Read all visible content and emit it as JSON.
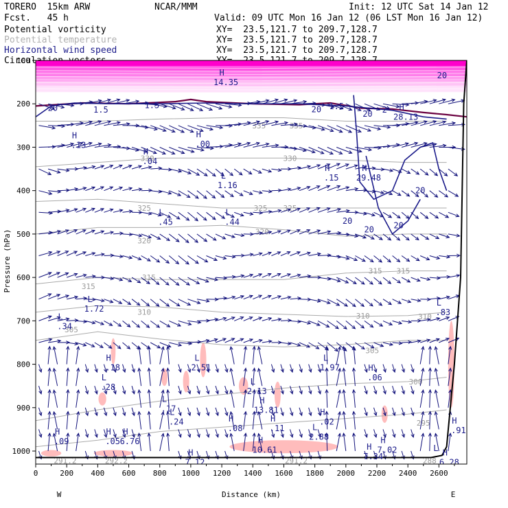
{
  "header": {
    "model": "TORERO  15km ARW",
    "org": "NCAR/MMM",
    "init": "Init: 12 UTC Sat 14 Jan 12",
    "fcst": "Fcst.   45 h",
    "valid": "Valid: 09 UTC Mon 16 Jan 12 (06 LST Mon 16 Jan 12)",
    "fields": [
      {
        "name": "Potential vorticity",
        "xy": "XY=  23.5,121.7 to 209.7,128.7"
      },
      {
        "name": "Potential temperature",
        "xy": "XY=  23.5,121.7 to 209.7,128.7"
      },
      {
        "name": "Horizontal wind speed",
        "xy": "XY=  23.5,121.7 to 209.7,128.7"
      },
      {
        "name": "Circulation vectors",
        "xy": "XY=  23.5,121.7 to 209.7,128.7"
      }
    ]
  },
  "colors": {
    "pv": "#ff00cc",
    "pv_light": "#ffb0f0",
    "pv_dark": "#6a0040",
    "theta": "#aaaaaa",
    "windspeed": "#1b1b8a",
    "vectors": "#10107a",
    "windshade": "#ffbcbc",
    "terrain": "#000000"
  },
  "chart_data": {
    "type": "cross-section",
    "title": "Potential vorticity / Potential temperature / Horizontal wind speed / Circulation vectors",
    "xlabel": "Distance (km)",
    "ylabel": "Pressure (hPa)",
    "xlim": [
      0,
      2780
    ],
    "ylim": [
      1030,
      100
    ],
    "x_ticks": [
      0,
      200,
      400,
      600,
      800,
      1000,
      1200,
      1400,
      1600,
      1800,
      2000,
      2200,
      2400,
      2600
    ],
    "y_ticks": [
      100,
      200,
      300,
      400,
      500,
      600,
      700,
      800,
      900,
      1000
    ],
    "x_end_labels": {
      "left": "W",
      "right": "E"
    },
    "theta_isotherms": [
      {
        "value": 295,
        "points": [
          [
            0,
            990
          ],
          [
            400,
            975
          ],
          [
            800,
            955
          ],
          [
            1200,
            945
          ],
          [
            1600,
            935
          ],
          [
            2000,
            925
          ],
          [
            2400,
            915
          ],
          [
            2650,
            905
          ]
        ],
        "labels": [
          [
            2500,
            935,
            "295"
          ]
        ]
      },
      {
        "value": 300,
        "points": [
          [
            0,
            930
          ],
          [
            400,
            905
          ],
          [
            800,
            885
          ],
          [
            1200,
            870
          ],
          [
            1600,
            855
          ],
          [
            2000,
            845
          ],
          [
            2400,
            840
          ],
          [
            2650,
            830
          ]
        ],
        "labels": [
          [
            2450,
            840,
            "300"
          ]
        ]
      },
      {
        "value": 305,
        "points": [
          [
            0,
            745
          ],
          [
            400,
            725
          ],
          [
            800,
            742
          ],
          [
            1200,
            755
          ],
          [
            1600,
            760
          ],
          [
            2000,
            755
          ],
          [
            2400,
            745
          ],
          [
            2650,
            745
          ]
        ],
        "labels": [
          [
            230,
            720,
            "305"
          ],
          [
            2170,
            768,
            "305"
          ]
        ]
      },
      {
        "value": 310,
        "points": [
          [
            0,
            680
          ],
          [
            400,
            665
          ],
          [
            800,
            668
          ],
          [
            1200,
            680
          ],
          [
            1600,
            685
          ],
          [
            2000,
            690
          ],
          [
            2400,
            688
          ],
          [
            2650,
            680
          ]
        ],
        "labels": [
          [
            700,
            680,
            "310"
          ],
          [
            2110,
            688,
            "310"
          ],
          [
            2510,
            690,
            "310"
          ]
        ]
      },
      {
        "value": 315,
        "points": [
          [
            0,
            615
          ],
          [
            400,
            600
          ],
          [
            800,
            605
          ],
          [
            1200,
            605
          ],
          [
            1600,
            605
          ],
          [
            2000,
            590
          ],
          [
            2400,
            585
          ],
          [
            2650,
            585
          ]
        ],
        "labels": [
          [
            340,
            620,
            "315"
          ],
          [
            730,
            600,
            "315"
          ],
          [
            2190,
            585,
            "315"
          ],
          [
            2370,
            585,
            "315"
          ]
        ]
      },
      {
        "value": 320,
        "points": [
          [
            0,
            500
          ],
          [
            400,
            485
          ],
          [
            800,
            485
          ],
          [
            1200,
            480
          ],
          [
            1600,
            490
          ],
          [
            2000,
            505
          ],
          [
            2400,
            500
          ],
          [
            2650,
            500
          ]
        ],
        "labels": [
          [
            700,
            515,
            "320"
          ],
          [
            1460,
            495,
            "320"
          ]
        ]
      },
      {
        "value": 325,
        "points": [
          [
            0,
            425
          ],
          [
            400,
            420
          ],
          [
            800,
            430
          ],
          [
            1200,
            440
          ],
          [
            1600,
            440
          ],
          [
            2000,
            440
          ],
          [
            2400,
            440
          ],
          [
            2650,
            440
          ]
        ],
        "labels": [
          [
            700,
            440,
            "325"
          ],
          [
            1450,
            440,
            "325"
          ],
          [
            1640,
            440,
            "325"
          ]
        ]
      },
      {
        "value": 330,
        "points": [
          [
            0,
            345
          ],
          [
            400,
            335
          ],
          [
            800,
            325
          ],
          [
            1200,
            325
          ],
          [
            1600,
            325
          ],
          [
            2000,
            330
          ],
          [
            2400,
            335
          ],
          [
            2650,
            335
          ]
        ],
        "labels": [
          [
            720,
            325,
            "330"
          ],
          [
            1640,
            325,
            "330"
          ]
        ]
      },
      {
        "value": 335,
        "points": [
          [
            0,
            240
          ],
          [
            400,
            240
          ],
          [
            800,
            235
          ],
          [
            1200,
            232
          ],
          [
            1600,
            232
          ],
          [
            2000,
            240
          ],
          [
            2400,
            240
          ],
          [
            2650,
            240
          ]
        ],
        "labels": [
          [
            1440,
            250,
            "335"
          ],
          [
            1680,
            250,
            "335"
          ]
        ]
      }
    ],
    "windspeed_contours": [
      {
        "value": 20,
        "points": [
          [
            0,
            230
          ],
          [
            100,
            205
          ],
          [
            250,
            198
          ],
          [
            500,
            200
          ],
          [
            800,
            200
          ],
          [
            1100,
            198
          ],
          [
            1400,
            200
          ],
          [
            1700,
            200
          ],
          [
            2000,
            205
          ],
          [
            2300,
            215
          ],
          [
            2500,
            230
          ],
          [
            2650,
            235
          ]
        ],
        "labels": [
          [
            110,
            210,
            "20"
          ],
          [
            2620,
            135,
            "20"
          ]
        ]
      },
      {
        "value": 20,
        "points": [
          [
            2050,
            180
          ],
          [
            2070,
            270
          ],
          [
            2090,
            380
          ],
          [
            2180,
            420
          ],
          [
            2300,
            400
          ],
          [
            2380,
            330
          ],
          [
            2480,
            300
          ],
          [
            2560,
            290
          ],
          [
            2600,
            350
          ],
          [
            2650,
            400
          ]
        ],
        "labels": [
          [
            2010,
            470,
            "20"
          ],
          [
            2480,
            400,
            "20"
          ]
        ]
      },
      {
        "value": 20,
        "points": [
          [
            2130,
            320
          ],
          [
            2210,
            440
          ],
          [
            2300,
            500
          ],
          [
            2400,
            470
          ],
          [
            2480,
            420
          ]
        ],
        "labels": [
          [
            2150,
            490,
            "20"
          ],
          [
            2340,
            480,
            "20"
          ]
        ]
      }
    ],
    "windspeed_contour_labels": [
      [
        1810,
        213,
        "20"
      ],
      [
        2140,
        223,
        "20"
      ]
    ],
    "pv_band": {
      "top": 100,
      "bottom": 200,
      "levels": [
        "1.5",
        "2",
        "3",
        "4",
        "5",
        "6"
      ],
      "labels": [
        [
          420,
          220,
          "1.5"
        ],
        [
          750,
          210,
          "1.5"
        ],
        [
          1940,
          212,
          "1.5"
        ],
        [
          2250,
          220,
          "2"
        ]
      ]
    },
    "wind_speed_shading": [
      {
        "center": [
          100,
          1005
        ],
        "w": 130,
        "h": 15
      },
      {
        "center": [
          500,
          1005
        ],
        "w": 250,
        "h": 15
      },
      {
        "center": [
          500,
          770
        ],
        "w": 30,
        "h": 60
      },
      {
        "center": [
          430,
          880
        ],
        "w": 50,
        "h": 30
      },
      {
        "center": [
          830,
          830
        ],
        "w": 40,
        "h": 40
      },
      {
        "center": [
          970,
          840
        ],
        "w": 40,
        "h": 50
      },
      {
        "center": [
          1080,
          790
        ],
        "w": 40,
        "h": 80
      },
      {
        "center": [
          1340,
          850
        ],
        "w": 60,
        "h": 40
      },
      {
        "center": [
          1560,
          870
        ],
        "w": 40,
        "h": 60
      },
      {
        "center": [
          2250,
          915
        ],
        "w": 40,
        "h": 40
      },
      {
        "center": [
          2680,
          800
        ],
        "w": 40,
        "h": 200
      },
      {
        "center": [
          1600,
          990
        ],
        "w": 700,
        "h": 30
      }
    ],
    "extrema_labels": [
      {
        "sym": "H",
        "val": "14.35",
        "x": 1200,
        "y": 138
      },
      {
        "sym": "H",
        "val": ".13",
        "x": 250,
        "y": 283
      },
      {
        "sym": "H",
        "val": ".04",
        "x": 710,
        "y": 320
      },
      {
        "sym": "H",
        "val": ".00",
        "x": 1050,
        "y": 280
      },
      {
        "sym": "L",
        "val": "1.16",
        "x": 1210,
        "y": 375
      },
      {
        "sym": "H",
        "val": ".15",
        "x": 1880,
        "y": 358
      },
      {
        "sym": "H",
        "val": "29.48",
        "x": 2120,
        "y": 358
      },
      {
        "sym": "H",
        "val": "28.13",
        "x": 2360,
        "y": 218
      },
      {
        "sym": "L",
        "val": ".45",
        "x": 810,
        "y": 460
      },
      {
        "sym": "L",
        "val": ".44",
        "x": 1240,
        "y": 460
      },
      {
        "sym": "L",
        "val": "1.72",
        "x": 350,
        "y": 660
      },
      {
        "sym": "L",
        "val": ".34",
        "x": 160,
        "y": 700
      },
      {
        "sym": "L",
        "val": ".83",
        "x": 2600,
        "y": 668
      },
      {
        "sym": "H",
        "val": ".18",
        "x": 470,
        "y": 795
      },
      {
        "sym": "L",
        "val": "2.51",
        "x": 1040,
        "y": 795
      },
      {
        "sym": "L",
        "val": "1.97",
        "x": 1870,
        "y": 795
      },
      {
        "sym": "H",
        "val": ".06",
        "x": 2160,
        "y": 818
      },
      {
        "sym": "L",
        "val": ".28",
        "x": 440,
        "y": 840
      },
      {
        "sym": "L",
        "val": "2.13",
        "x": 1400,
        "y": 850
      },
      {
        "sym": "L",
        "val": ".17",
        "x": 830,
        "y": 890
      },
      {
        "sym": "L",
        "val": ".24",
        "x": 880,
        "y": 920
      },
      {
        "sym": "H",
        "val": "13.81",
        "x": 1460,
        "y": 893
      },
      {
        "sym": "H",
        "val": ".02",
        "x": 1850,
        "y": 920
      },
      {
        "sym": "H",
        "val": ".08",
        "x": 1260,
        "y": 935
      },
      {
        "sym": "H",
        "val": ".11",
        "x": 1530,
        "y": 935
      },
      {
        "sym": "L",
        "val": "2.88",
        "x": 1800,
        "y": 955
      },
      {
        "sym": "H",
        "val": ".09",
        "x": 140,
        "y": 965
      },
      {
        "sym": "H",
        "val": ".05",
        "x": 470,
        "y": 965
      },
      {
        "sym": "H",
        "val": "6.76",
        "x": 580,
        "y": 965
      },
      {
        "sym": "H",
        "val": "10.61",
        "x": 1450,
        "y": 985
      },
      {
        "sym": "H",
        "val": "7.34",
        "x": 2150,
        "y": 1000
      },
      {
        "sym": "H",
        "val": "7.02",
        "x": 2240,
        "y": 985
      },
      {
        "sym": "H",
        "val": ".91",
        "x": 2700,
        "y": 940
      },
      {
        "sym": "H",
        "val": "7.12",
        "x": 1000,
        "y": 1013
      },
      {
        "sym": "H",
        "val": "6.28",
        "x": 2640,
        "y": 1013
      },
      {
        "sym": "L",
        "val": "",
        "x": 2580,
        "y": 1003
      }
    ],
    "bottom_labels": [
      [
        190,
        1022,
        "291.2"
      ],
      [
        520,
        1022,
        "292.2"
      ],
      [
        1680,
        1022,
        "291.2"
      ],
      [
        2540,
        1022,
        "288"
      ]
    ],
    "vector_grid": {
      "dx": 60,
      "levels": [
        200,
        250,
        300,
        350,
        400,
        450,
        500,
        550,
        600,
        650,
        700,
        750,
        800,
        850,
        900,
        950,
        1000
      ]
    },
    "terrain": [
      [
        0,
        1015
      ],
      [
        2550,
        1015
      ],
      [
        2620,
        1010
      ],
      [
        2650,
        990
      ],
      [
        2700,
        800
      ],
      [
        2740,
        600
      ],
      [
        2760,
        200
      ],
      [
        2780,
        100
      ]
    ]
  }
}
